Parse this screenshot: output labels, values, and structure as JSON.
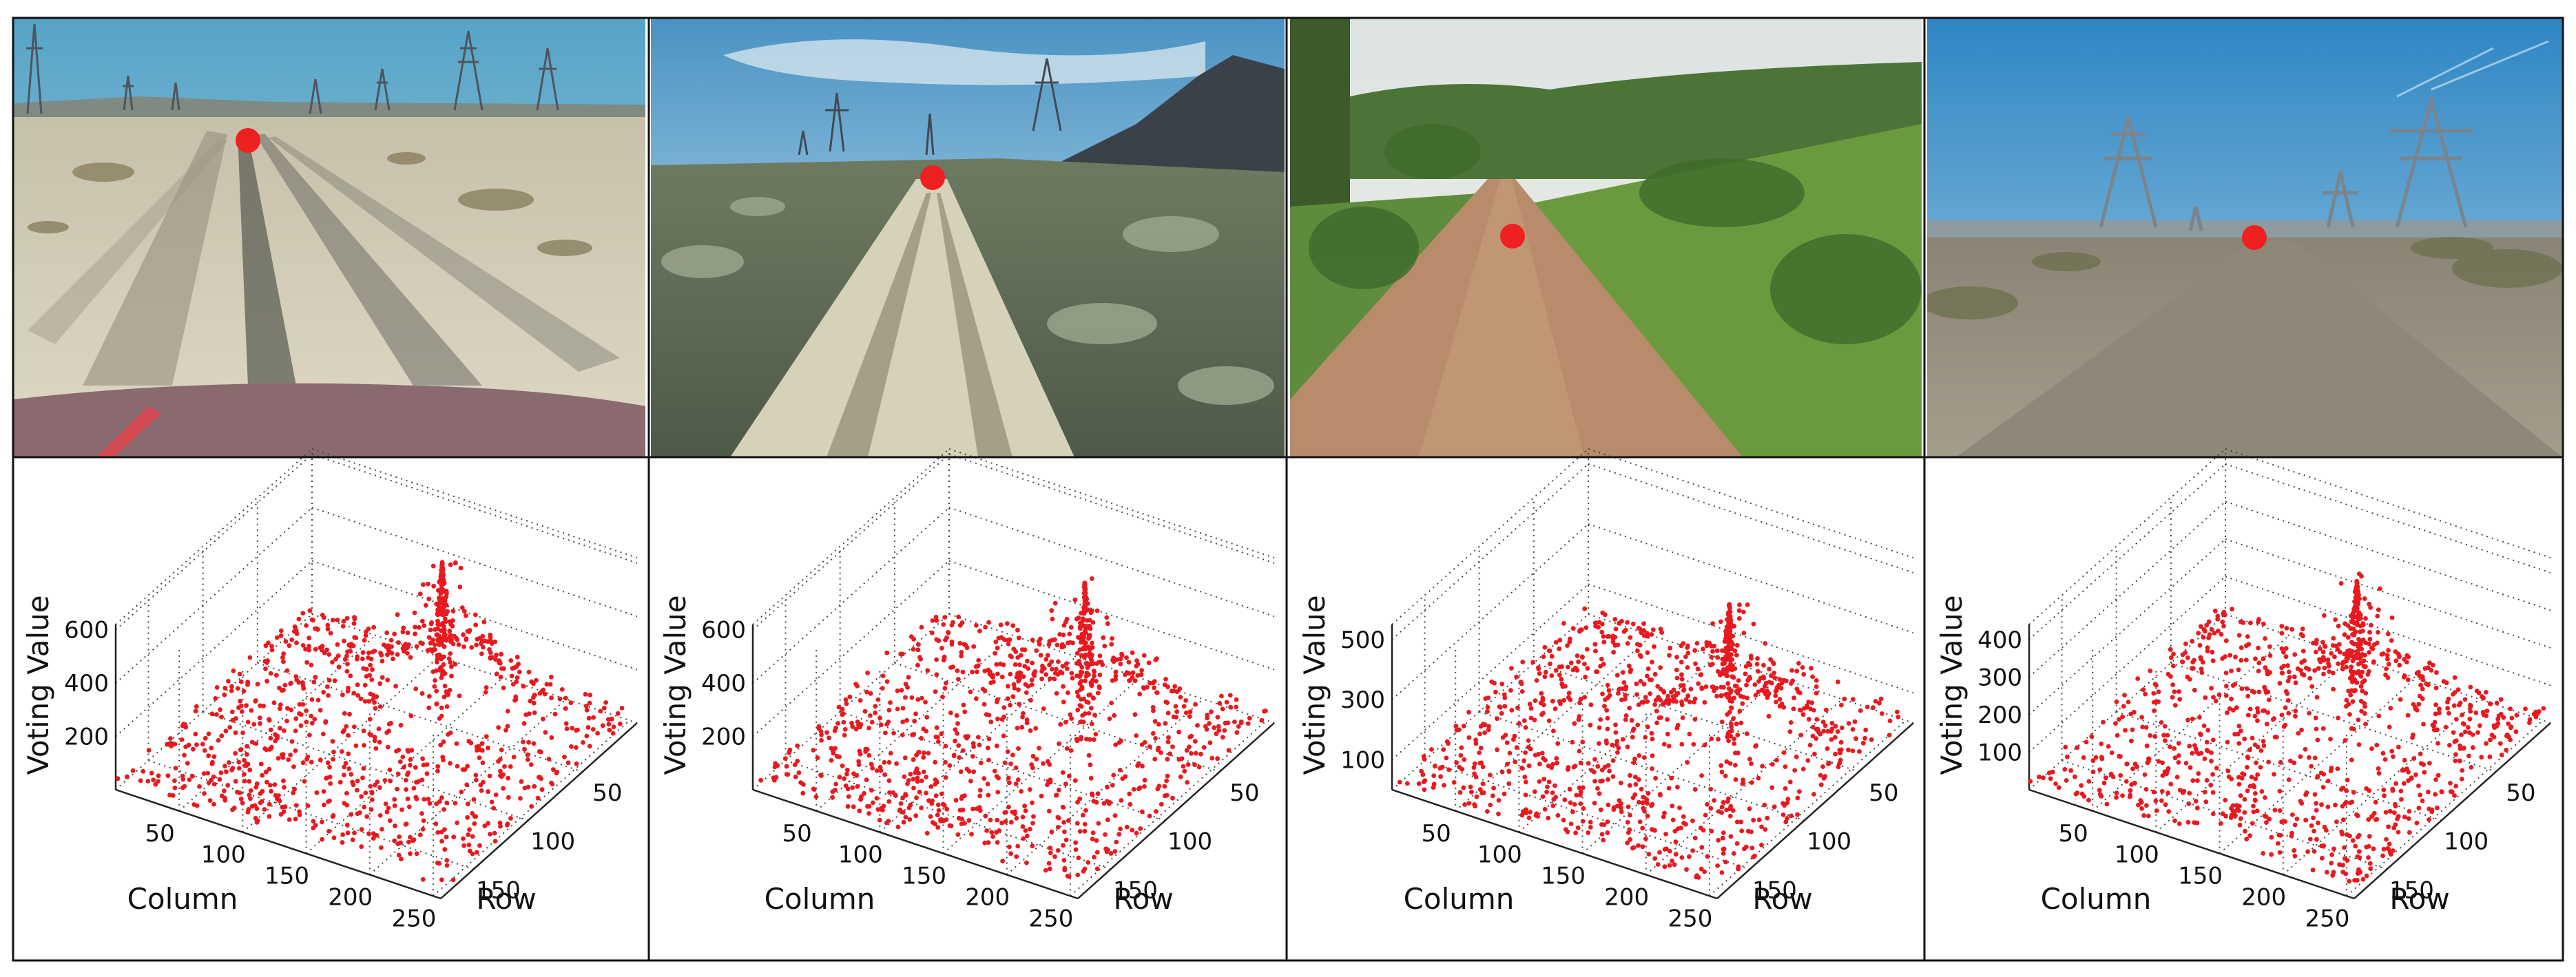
{
  "figure": {
    "panels": [
      {
        "photo": {
          "scene": "desert-sand-track",
          "vanishing_point_color": "#ee2020"
        },
        "chart": {
          "xlabel": "Column",
          "ylabel": "Row",
          "zlabel": "Voting Value",
          "x_ticks": [
            "50",
            "100",
            "150",
            "200",
            "250"
          ],
          "y_ticks": [
            "50",
            "100",
            "150"
          ],
          "z_ticks": [
            "200",
            "400",
            "600"
          ]
        }
      },
      {
        "photo": {
          "scene": "desert-gravel-road-mountains",
          "vanishing_point_color": "#ee2020"
        },
        "chart": {
          "xlabel": "Column",
          "ylabel": "Row",
          "zlabel": "Voting Value",
          "x_ticks": [
            "50",
            "100",
            "150",
            "200",
            "250"
          ],
          "y_ticks": [
            "50",
            "100",
            "150"
          ],
          "z_ticks": [
            "200",
            "400",
            "600"
          ]
        }
      },
      {
        "photo": {
          "scene": "forest-dirt-road",
          "vanishing_point_color": "#ee2020"
        },
        "chart": {
          "xlabel": "Column",
          "ylabel": "Row",
          "zlabel": "Voting Value",
          "x_ticks": [
            "50",
            "100",
            "150",
            "200",
            "250"
          ],
          "y_ticks": [
            "50",
            "100",
            "150"
          ],
          "z_ticks": [
            "100",
            "300",
            "500"
          ]
        }
      },
      {
        "photo": {
          "scene": "desert-gravel-road-power-lines",
          "vanishing_point_color": "#ee2020"
        },
        "chart": {
          "xlabel": "Column",
          "ylabel": "Row",
          "zlabel": "Voting Value",
          "x_ticks": [
            "50",
            "100",
            "150",
            "200",
            "250"
          ],
          "y_ticks": [
            "50",
            "100",
            "150"
          ],
          "z_ticks": [
            "100",
            "200",
            "300",
            "400"
          ]
        }
      }
    ]
  },
  "chart_data": [
    {
      "type": "scatter",
      "dims": 3,
      "xlabel": "Column",
      "ylabel": "Row",
      "zlabel": "Voting Value",
      "xlim": [
        0,
        256
      ],
      "ylim": [
        0,
        180
      ],
      "zlim": [
        0,
        620
      ],
      "grid": true,
      "marker_color": "#e8191f",
      "peak": {
        "x": 142,
        "y": 46,
        "z": 590
      }
    },
    {
      "type": "scatter",
      "dims": 3,
      "xlabel": "Column",
      "ylabel": "Row",
      "zlabel": "Voting Value",
      "xlim": [
        0,
        256
      ],
      "ylim": [
        0,
        180
      ],
      "zlim": [
        0,
        620
      ],
      "grid": true,
      "marker_color": "#e8191f",
      "peak": {
        "x": 160,
        "y": 62,
        "z": 600
      }
    },
    {
      "type": "scatter",
      "dims": 3,
      "xlabel": "Column",
      "ylabel": "Row",
      "zlabel": "Voting Value",
      "xlim": [
        0,
        256
      ],
      "ylim": [
        0,
        180
      ],
      "zlim": [
        0,
        550
      ],
      "grid": true,
      "marker_color": "#e8191f",
      "peak": {
        "x": 178,
        "y": 78,
        "z": 540
      }
    },
    {
      "type": "scatter",
      "dims": 3,
      "xlabel": "Column",
      "ylabel": "Row",
      "zlabel": "Voting Value",
      "xlim": [
        0,
        256
      ],
      "ylim": [
        0,
        180
      ],
      "zlim": [
        0,
        440
      ],
      "grid": true,
      "marker_color": "#e8191f",
      "peak": {
        "x": 155,
        "y": 60,
        "z": 420
      }
    }
  ]
}
